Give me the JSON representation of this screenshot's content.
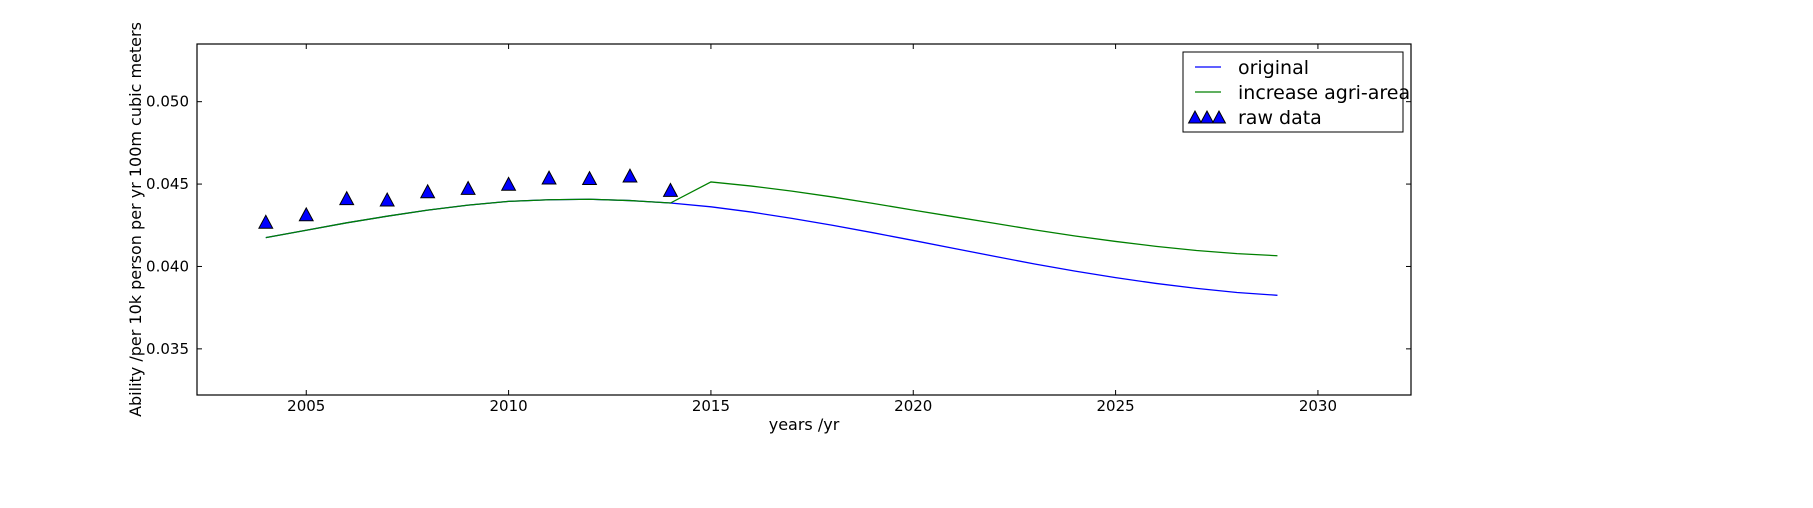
{
  "chart_data": {
    "type": "line",
    "xlabel": "years /yr",
    "ylabel": "Ability /per 10k person per yr 100m cubic meters",
    "xlim": [
      2002.3,
      2032.3
    ],
    "ylim": [
      0.0322,
      0.0535
    ],
    "xticks": [
      2005,
      2010,
      2015,
      2020,
      2025,
      2030
    ],
    "yticks": [
      0.035,
      0.04,
      0.045,
      0.05
    ],
    "ytick_labels": [
      "0.035",
      "0.040",
      "0.045",
      "0.050"
    ],
    "grid": false,
    "legend_position": "top-right",
    "series": [
      {
        "name": "original",
        "kind": "line",
        "color": "#0000ff",
        "x": [
          2004,
          2005,
          2006,
          2007,
          2008,
          2009,
          2010,
          2011,
          2012,
          2013,
          2014,
          2015,
          2016,
          2017,
          2018,
          2019,
          2020,
          2021,
          2022,
          2023,
          2024,
          2025,
          2026,
          2027,
          2028,
          2029
        ],
        "y": [
          0.04175,
          0.0422,
          0.04265,
          0.04305,
          0.04342,
          0.04372,
          0.04395,
          0.04405,
          0.04408,
          0.044,
          0.04385,
          0.04362,
          0.0433,
          0.04292,
          0.0425,
          0.04205,
          0.04158,
          0.0411,
          0.04062,
          0.04015,
          0.03972,
          0.03932,
          0.03897,
          0.03867,
          0.03842,
          0.03825
        ]
      },
      {
        "name": "increase agri-area",
        "kind": "line",
        "color": "#008000",
        "x": [
          2004,
          2005,
          2006,
          2007,
          2008,
          2009,
          2010,
          2011,
          2012,
          2013,
          2014,
          2015,
          2016,
          2017,
          2018,
          2019,
          2020,
          2021,
          2022,
          2023,
          2024,
          2025,
          2026,
          2027,
          2028,
          2029
        ],
        "y": [
          0.04175,
          0.0422,
          0.04265,
          0.04305,
          0.04342,
          0.04372,
          0.04395,
          0.04405,
          0.04408,
          0.044,
          0.04385,
          0.04513,
          0.04488,
          0.04457,
          0.04422,
          0.04383,
          0.04342,
          0.04302,
          0.04262,
          0.04222,
          0.04185,
          0.04152,
          0.04122,
          0.04097,
          0.04078,
          0.04065
        ]
      },
      {
        "name": "raw data",
        "kind": "scatter",
        "marker": "triangle",
        "color": "#0000ff",
        "x": [
          2004,
          2005,
          2006,
          2007,
          2008,
          2009,
          2010,
          2011,
          2012,
          2013,
          2014
        ],
        "y": [
          0.04265,
          0.0431,
          0.04408,
          0.044,
          0.0445,
          0.0447,
          0.04495,
          0.04533,
          0.0453,
          0.04545,
          0.04458
        ]
      }
    ]
  }
}
